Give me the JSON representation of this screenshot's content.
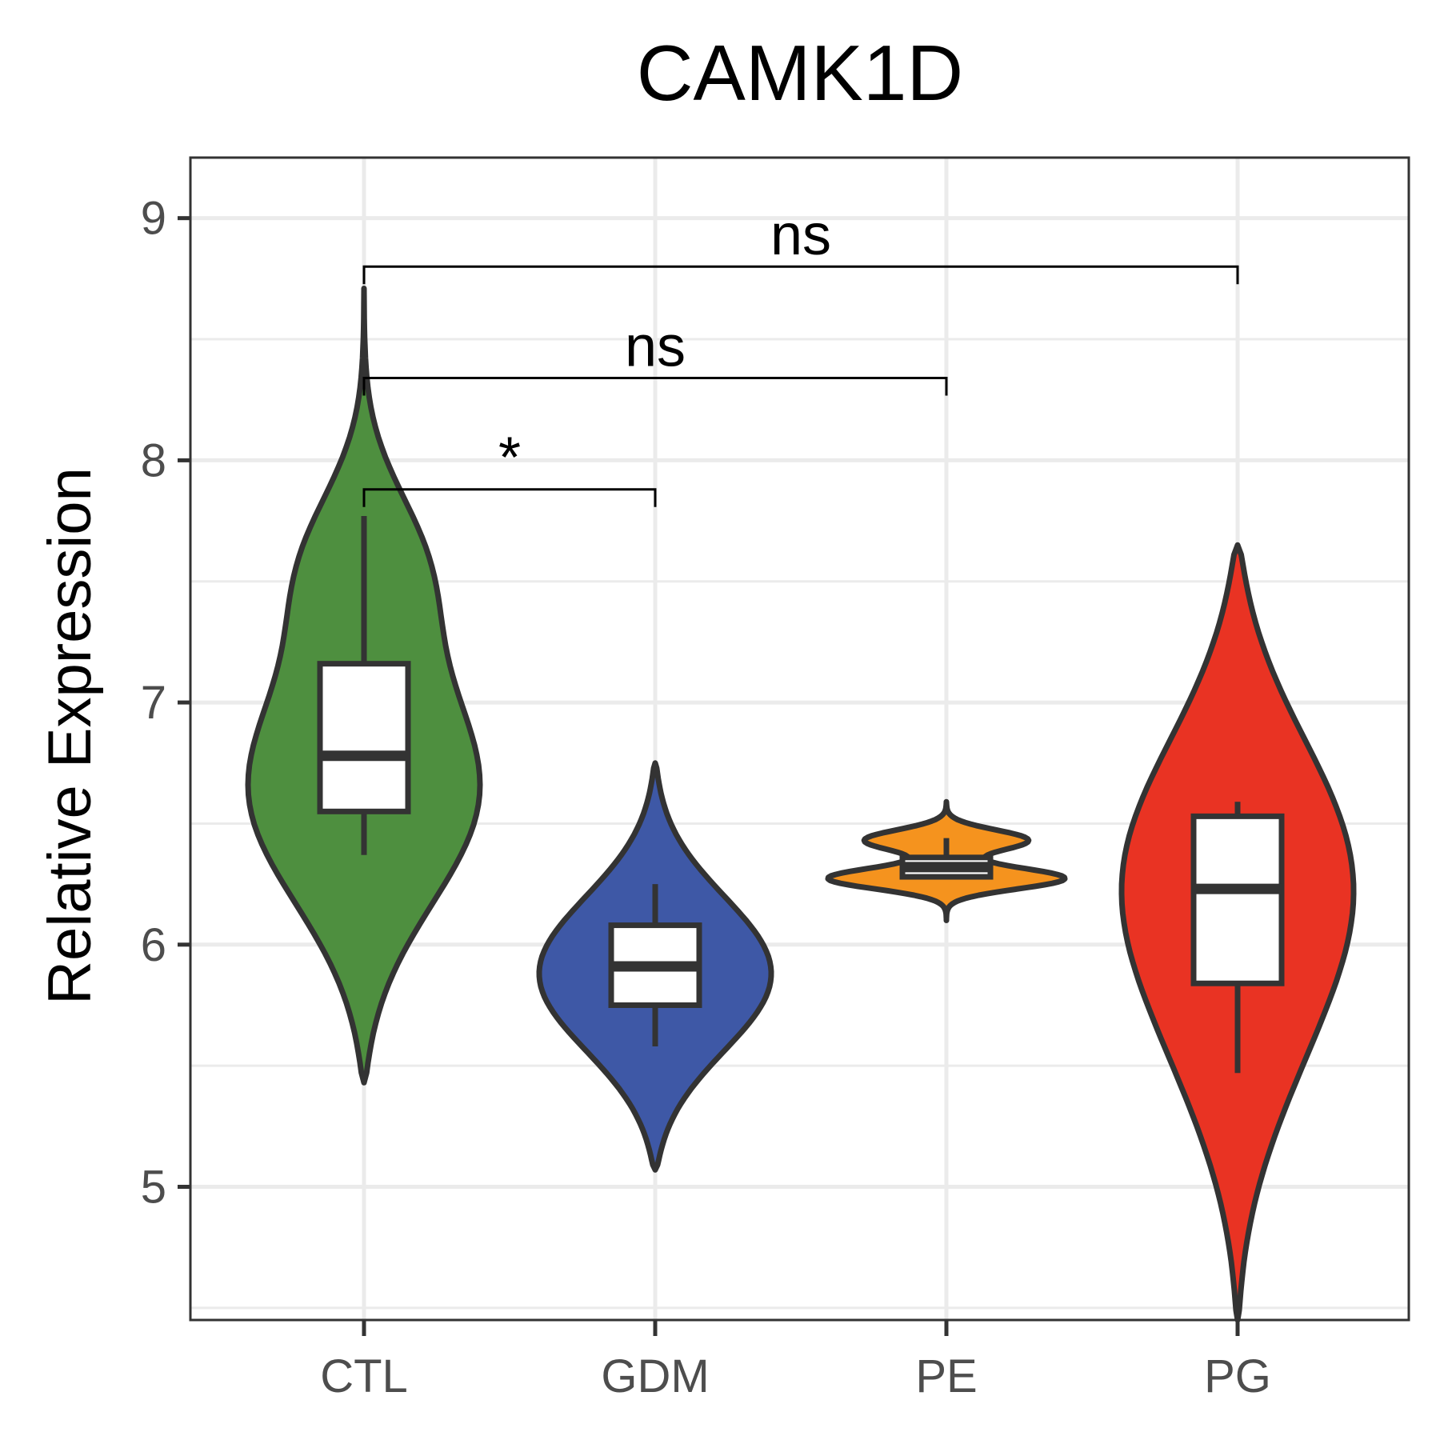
{
  "chart_data": {
    "type": "violin",
    "title": "CAMK1D",
    "xlabel": "",
    "ylabel": "Relative Expression",
    "categories": [
      "CTL",
      "GDM",
      "PE",
      "PG"
    ],
    "ylim": [
      4.45,
      9.25
    ],
    "y_ticks": [
      "5",
      "6",
      "7",
      "8",
      "9"
    ],
    "grid": true,
    "legend": "none",
    "series": [
      {
        "category": "CTL",
        "color": "#4e8f3f",
        "violin_range": [
          5.43,
          8.71
        ],
        "box": {
          "min": 6.37,
          "q1": 6.55,
          "median": 6.78,
          "q3": 7.16,
          "max": 7.77
        }
      },
      {
        "category": "GDM",
        "color": "#3e58a6",
        "violin_range": [
          5.07,
          6.75
        ],
        "box": {
          "min": 5.58,
          "q1": 5.75,
          "median": 5.91,
          "q3": 6.08,
          "max": 6.25
        }
      },
      {
        "category": "PE",
        "color": "#f5931e",
        "violin_range": [
          6.1,
          6.59
        ],
        "box": {
          "min": 6.28,
          "q1": 6.28,
          "median": 6.32,
          "q3": 6.36,
          "max": 6.44
        }
      },
      {
        "category": "PG",
        "color": "#e93323",
        "violin_range": [
          4.45,
          7.65
        ],
        "box": {
          "min": 5.47,
          "q1": 5.84,
          "median": 6.23,
          "q3": 6.53,
          "max": 6.59
        }
      }
    ],
    "comparisons": [
      {
        "group1": "CTL",
        "group2": "GDM",
        "label": "*",
        "y": 7.88
      },
      {
        "group1": "CTL",
        "group2": "PE",
        "label": "ns",
        "y": 8.34
      },
      {
        "group1": "CTL",
        "group2": "PG",
        "label": "ns",
        "y": 8.8
      }
    ]
  }
}
